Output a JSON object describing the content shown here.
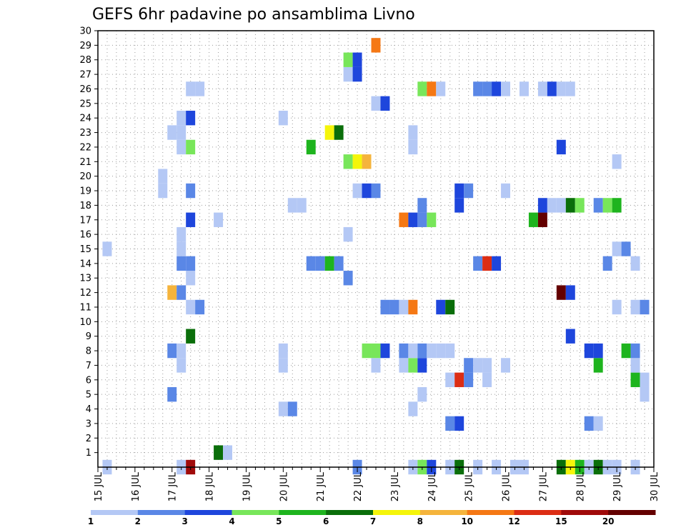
{
  "chart_data": {
    "type": "heatmap",
    "title": "GEFS 6hr padavine po ansamblima Livno",
    "x_label_suffix": "JUL",
    "x_tick_days": [
      15,
      16,
      17,
      18,
      19,
      20,
      21,
      22,
      23,
      24,
      25,
      26,
      27,
      28,
      29,
      30
    ],
    "x_range": [
      15,
      30
    ],
    "x_step": 0.25,
    "y_ticks": [
      1,
      2,
      3,
      4,
      5,
      6,
      7,
      8,
      9,
      10,
      11,
      12,
      13,
      14,
      15,
      16,
      17,
      18,
      19,
      20,
      21,
      22,
      23,
      24,
      25,
      26,
      27,
      28,
      29,
      30
    ],
    "y_range": [
      0,
      30
    ],
    "grid": true,
    "colorbar": {
      "labels": [
        "1",
        "2",
        "3",
        "4",
        "5",
        "6",
        "7",
        "8",
        "10",
        "12",
        "15",
        "20"
      ],
      "colors": [
        "#b4c8f5",
        "#5a87e6",
        "#1e46dc",
        "#78e65a",
        "#1eb41e",
        "#0a6e0a",
        "#f5f50a",
        "#f5b43c",
        "#f57814",
        "#dc2d14",
        "#a00a0a",
        "#640000"
      ]
    },
    "cells": [
      {
        "d": 15.25,
        "m": 0,
        "c": 0
      },
      {
        "d": 17.25,
        "m": 0,
        "c": 0
      },
      {
        "d": 17.5,
        "m": 0,
        "c": 10
      },
      {
        "d": 22,
        "m": 0,
        "c": 1
      },
      {
        "d": 23.5,
        "m": 0,
        "c": 0
      },
      {
        "d": 23.75,
        "m": 0,
        "c": 3
      },
      {
        "d": 24,
        "m": 0,
        "c": 2
      },
      {
        "d": 24.5,
        "m": 0,
        "c": 0
      },
      {
        "d": 24.75,
        "m": 0,
        "c": 5
      },
      {
        "d": 25.25,
        "m": 0,
        "c": 0
      },
      {
        "d": 25.75,
        "m": 0,
        "c": 0
      },
      {
        "d": 26.25,
        "m": 0,
        "c": 0
      },
      {
        "d": 26.5,
        "m": 0,
        "c": 0
      },
      {
        "d": 27.5,
        "m": 0,
        "c": 5
      },
      {
        "d": 27.75,
        "m": 0,
        "c": 6
      },
      {
        "d": 28,
        "m": 0,
        "c": 4
      },
      {
        "d": 28.25,
        "m": 0,
        "c": 0
      },
      {
        "d": 28.5,
        "m": 0,
        "c": 5
      },
      {
        "d": 28.75,
        "m": 0,
        "c": 0
      },
      {
        "d": 29,
        "m": 0,
        "c": 0
      },
      {
        "d": 29.5,
        "m": 0,
        "c": 0
      },
      {
        "d": 18.25,
        "m": 1,
        "c": 5
      },
      {
        "d": 18.5,
        "m": 1,
        "c": 0
      },
      {
        "d": 24.5,
        "m": 3,
        "c": 1
      },
      {
        "d": 24.75,
        "m": 3,
        "c": 2
      },
      {
        "d": 28.25,
        "m": 3,
        "c": 1
      },
      {
        "d": 28.5,
        "m": 3,
        "c": 0
      },
      {
        "d": 20,
        "m": 4,
        "c": 0
      },
      {
        "d": 20.25,
        "m": 4,
        "c": 1
      },
      {
        "d": 23.5,
        "m": 4,
        "c": 0
      },
      {
        "d": 17,
        "m": 5,
        "c": 1
      },
      {
        "d": 23.75,
        "m": 5,
        "c": 0
      },
      {
        "d": 29.75,
        "m": 5,
        "c": 0
      },
      {
        "d": 24.5,
        "m": 6,
        "c": 0
      },
      {
        "d": 24.75,
        "m": 6,
        "c": 9
      },
      {
        "d": 25,
        "m": 6,
        "c": 1
      },
      {
        "d": 25.5,
        "m": 6,
        "c": 0
      },
      {
        "d": 29.5,
        "m": 6,
        "c": 4
      },
      {
        "d": 29.75,
        "m": 6,
        "c": 0
      },
      {
        "d": 17.25,
        "m": 7,
        "c": 0
      },
      {
        "d": 20,
        "m": 7,
        "c": 0
      },
      {
        "d": 22.5,
        "m": 7,
        "c": 0
      },
      {
        "d": 23.25,
        "m": 7,
        "c": 0
      },
      {
        "d": 23.5,
        "m": 7,
        "c": 3
      },
      {
        "d": 23.75,
        "m": 7,
        "c": 2
      },
      {
        "d": 25,
        "m": 7,
        "c": 1
      },
      {
        "d": 25.25,
        "m": 7,
        "c": 0
      },
      {
        "d": 25.5,
        "m": 7,
        "c": 0
      },
      {
        "d": 26,
        "m": 7,
        "c": 0
      },
      {
        "d": 28.5,
        "m": 7,
        "c": 4
      },
      {
        "d": 29.5,
        "m": 7,
        "c": 0
      },
      {
        "d": 17,
        "m": 8,
        "c": 1
      },
      {
        "d": 17.25,
        "m": 8,
        "c": 0
      },
      {
        "d": 20,
        "m": 8,
        "c": 0
      },
      {
        "d": 22.25,
        "m": 8,
        "c": 3
      },
      {
        "d": 22.5,
        "m": 8,
        "c": 3
      },
      {
        "d": 22.75,
        "m": 8,
        "c": 2
      },
      {
        "d": 23.25,
        "m": 8,
        "c": 1
      },
      {
        "d": 23.5,
        "m": 8,
        "c": 0
      },
      {
        "d": 23.75,
        "m": 8,
        "c": 1
      },
      {
        "d": 24,
        "m": 8,
        "c": 0
      },
      {
        "d": 24.25,
        "m": 8,
        "c": 0
      },
      {
        "d": 24.5,
        "m": 8,
        "c": 0
      },
      {
        "d": 28.25,
        "m": 8,
        "c": 2
      },
      {
        "d": 28.5,
        "m": 8,
        "c": 2
      },
      {
        "d": 29.25,
        "m": 8,
        "c": 4
      },
      {
        "d": 29.5,
        "m": 8,
        "c": 1
      },
      {
        "d": 17.5,
        "m": 9,
        "c": 5
      },
      {
        "d": 27.75,
        "m": 9,
        "c": 2
      },
      {
        "d": 17.5,
        "m": 11,
        "c": 0
      },
      {
        "d": 17.75,
        "m": 11,
        "c": 1
      },
      {
        "d": 22.75,
        "m": 11,
        "c": 1
      },
      {
        "d": 23,
        "m": 11,
        "c": 1
      },
      {
        "d": 23.25,
        "m": 11,
        "c": 0
      },
      {
        "d": 23.5,
        "m": 11,
        "c": 8
      },
      {
        "d": 24.25,
        "m": 11,
        "c": 2
      },
      {
        "d": 24.5,
        "m": 11,
        "c": 5
      },
      {
        "d": 29,
        "m": 11,
        "c": 0
      },
      {
        "d": 29.5,
        "m": 11,
        "c": 0
      },
      {
        "d": 29.75,
        "m": 11,
        "c": 1
      },
      {
        "d": 17,
        "m": 12,
        "c": 7
      },
      {
        "d": 17.25,
        "m": 12,
        "c": 1
      },
      {
        "d": 27.5,
        "m": 12,
        "c": 11
      },
      {
        "d": 27.75,
        "m": 12,
        "c": 2
      },
      {
        "d": 17.5,
        "m": 13,
        "c": 0
      },
      {
        "d": 21.75,
        "m": 13,
        "c": 1
      },
      {
        "d": 17.25,
        "m": 14,
        "c": 1
      },
      {
        "d": 17.5,
        "m": 14,
        "c": 1
      },
      {
        "d": 20.75,
        "m": 14,
        "c": 1
      },
      {
        "d": 21,
        "m": 14,
        "c": 1
      },
      {
        "d": 21.25,
        "m": 14,
        "c": 4
      },
      {
        "d": 21.5,
        "m": 14,
        "c": 1
      },
      {
        "d": 25.25,
        "m": 14,
        "c": 1
      },
      {
        "d": 25.5,
        "m": 14,
        "c": 9
      },
      {
        "d": 25.75,
        "m": 14,
        "c": 2
      },
      {
        "d": 28.75,
        "m": 14,
        "c": 1
      },
      {
        "d": 29.5,
        "m": 14,
        "c": 0
      },
      {
        "d": 15.25,
        "m": 15,
        "c": 0
      },
      {
        "d": 17.25,
        "m": 15,
        "c": 0
      },
      {
        "d": 29,
        "m": 15,
        "c": 0
      },
      {
        "d": 29.25,
        "m": 15,
        "c": 1
      },
      {
        "d": 17.25,
        "m": 16,
        "c": 0
      },
      {
        "d": 21.75,
        "m": 16,
        "c": 0
      },
      {
        "d": 17.5,
        "m": 17,
        "c": 2
      },
      {
        "d": 18.25,
        "m": 17,
        "c": 0
      },
      {
        "d": 23.25,
        "m": 17,
        "c": 8
      },
      {
        "d": 23.5,
        "m": 17,
        "c": 2
      },
      {
        "d": 23.75,
        "m": 17,
        "c": 1
      },
      {
        "d": 24,
        "m": 17,
        "c": 3
      },
      {
        "d": 26.75,
        "m": 17,
        "c": 4
      },
      {
        "d": 27,
        "m": 17,
        "c": 11
      },
      {
        "d": 20.25,
        "m": 18,
        "c": 0
      },
      {
        "d": 20.5,
        "m": 18,
        "c": 0
      },
      {
        "d": 23.75,
        "m": 18,
        "c": 1
      },
      {
        "d": 24.75,
        "m": 18,
        "c": 2
      },
      {
        "d": 27,
        "m": 18,
        "c": 2
      },
      {
        "d": 27.25,
        "m": 18,
        "c": 0
      },
      {
        "d": 27.5,
        "m": 18,
        "c": 0
      },
      {
        "d": 27.75,
        "m": 18,
        "c": 5
      },
      {
        "d": 28,
        "m": 18,
        "c": 3
      },
      {
        "d": 28.5,
        "m": 18,
        "c": 1
      },
      {
        "d": 28.75,
        "m": 18,
        "c": 3
      },
      {
        "d": 29,
        "m": 18,
        "c": 4
      },
      {
        "d": 16.75,
        "m": 19,
        "c": 0
      },
      {
        "d": 17.5,
        "m": 19,
        "c": 1
      },
      {
        "d": 22,
        "m": 19,
        "c": 0
      },
      {
        "d": 22.25,
        "m": 19,
        "c": 2
      },
      {
        "d": 22.5,
        "m": 19,
        "c": 1
      },
      {
        "d": 24.75,
        "m": 19,
        "c": 2
      },
      {
        "d": 25,
        "m": 19,
        "c": 1
      },
      {
        "d": 26,
        "m": 19,
        "c": 0
      },
      {
        "d": 16.75,
        "m": 20,
        "c": 0
      },
      {
        "d": 21.75,
        "m": 21,
        "c": 3
      },
      {
        "d": 22,
        "m": 21,
        "c": 6
      },
      {
        "d": 22.25,
        "m": 21,
        "c": 7
      },
      {
        "d": 29,
        "m": 21,
        "c": 0
      },
      {
        "d": 17.25,
        "m": 22,
        "c": 0
      },
      {
        "d": 17.5,
        "m": 22,
        "c": 3
      },
      {
        "d": 20.75,
        "m": 22,
        "c": 4
      },
      {
        "d": 23.5,
        "m": 22,
        "c": 0
      },
      {
        "d": 27.5,
        "m": 22,
        "c": 2
      },
      {
        "d": 17,
        "m": 23,
        "c": 0
      },
      {
        "d": 17.25,
        "m": 23,
        "c": 0
      },
      {
        "d": 21.25,
        "m": 23,
        "c": 6
      },
      {
        "d": 21.5,
        "m": 23,
        "c": 5
      },
      {
        "d": 23.5,
        "m": 23,
        "c": 0
      },
      {
        "d": 17.25,
        "m": 24,
        "c": 0
      },
      {
        "d": 17.5,
        "m": 24,
        "c": 2
      },
      {
        "d": 20,
        "m": 24,
        "c": 0
      },
      {
        "d": 22.5,
        "m": 25,
        "c": 0
      },
      {
        "d": 22.75,
        "m": 25,
        "c": 2
      },
      {
        "d": 17.5,
        "m": 26,
        "c": 0
      },
      {
        "d": 17.75,
        "m": 26,
        "c": 0
      },
      {
        "d": 23.75,
        "m": 26,
        "c": 3
      },
      {
        "d": 24,
        "m": 26,
        "c": 8
      },
      {
        "d": 24.25,
        "m": 26,
        "c": 0
      },
      {
        "d": 25.25,
        "m": 26,
        "c": 1
      },
      {
        "d": 25.5,
        "m": 26,
        "c": 1
      },
      {
        "d": 25.75,
        "m": 26,
        "c": 2
      },
      {
        "d": 26,
        "m": 26,
        "c": 0
      },
      {
        "d": 26.5,
        "m": 26,
        "c": 0
      },
      {
        "d": 27,
        "m": 26,
        "c": 0
      },
      {
        "d": 27.25,
        "m": 26,
        "c": 2
      },
      {
        "d": 27.5,
        "m": 26,
        "c": 0
      },
      {
        "d": 27.75,
        "m": 26,
        "c": 0
      },
      {
        "d": 21.75,
        "m": 27,
        "c": 0
      },
      {
        "d": 22,
        "m": 27,
        "c": 2
      },
      {
        "d": 21.75,
        "m": 28,
        "c": 3
      },
      {
        "d": 22,
        "m": 28,
        "c": 2
      },
      {
        "d": 22.5,
        "m": 29,
        "c": 8
      }
    ]
  }
}
